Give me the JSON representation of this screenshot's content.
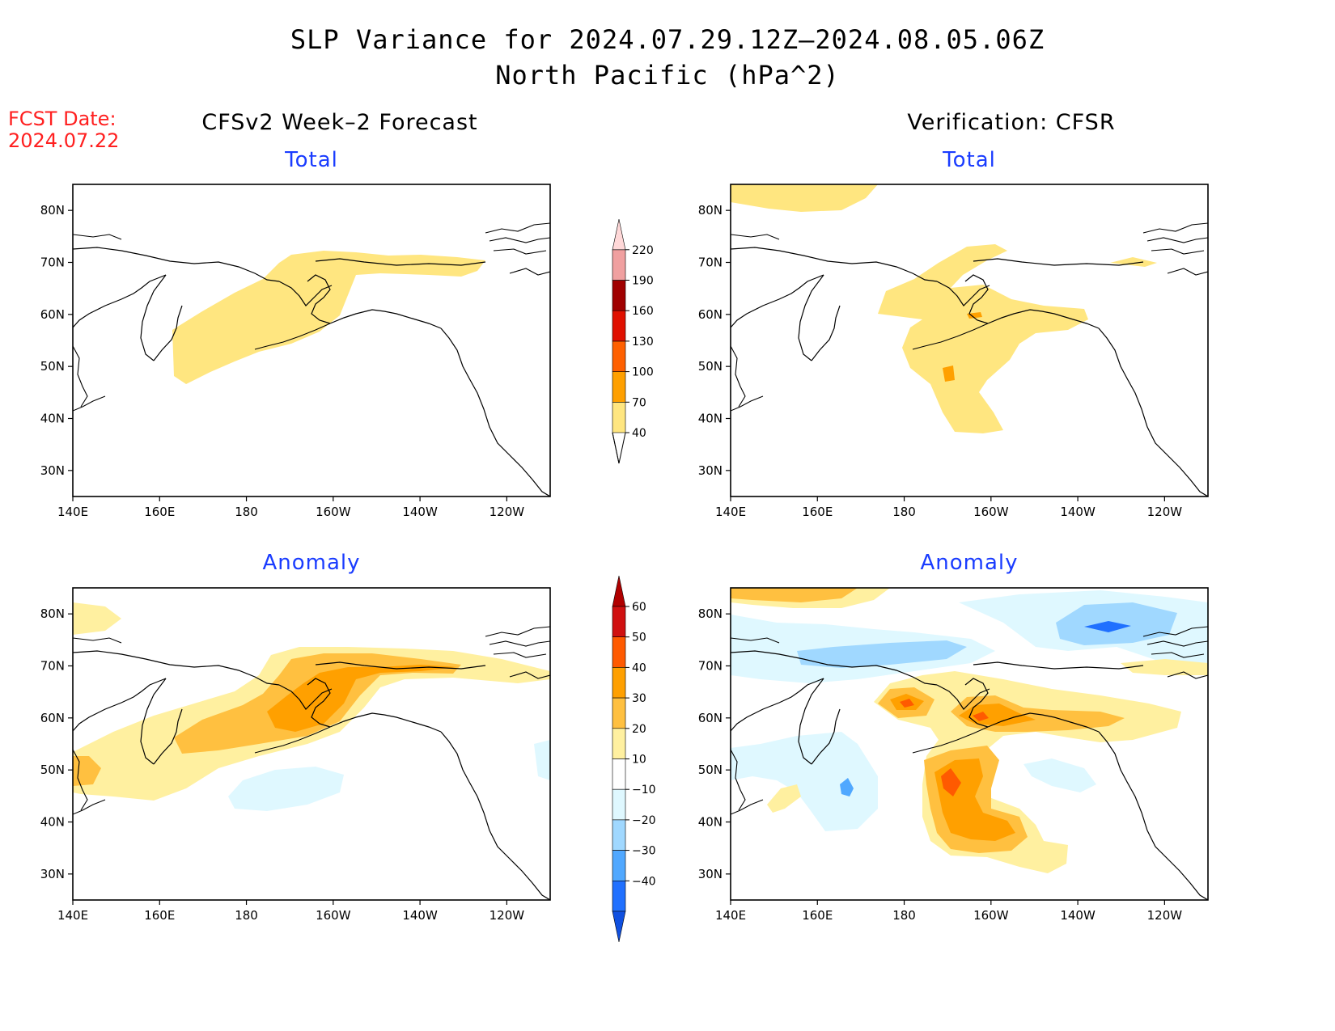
{
  "title": {
    "line1": "SLP Variance for 2024.07.29.12Z–2024.08.05.06Z",
    "line2": "North Pacific (hPa^2)"
  },
  "fcst": {
    "label": "FCST Date:",
    "date": "2024.07.22"
  },
  "columns": {
    "left": "CFSv2 Week–2 Forecast",
    "right": "Verification: CFSR"
  },
  "panels": {
    "top_left": "Total",
    "top_right": "Total",
    "bottom_left": "Anomaly",
    "bottom_right": "Anomaly"
  },
  "map_axes": {
    "lon_labels": [
      "140E",
      "160E",
      "180",
      "160W",
      "140W",
      "120W"
    ],
    "lon_values": [
      140,
      160,
      180,
      200,
      220,
      240
    ],
    "lat_labels": [
      "80N",
      "70N",
      "60N",
      "50N",
      "40N",
      "30N"
    ],
    "lat_values": [
      80,
      70,
      60,
      50,
      40,
      30
    ],
    "lon_range": [
      140,
      250
    ],
    "lat_range": [
      25,
      85
    ]
  },
  "colorbars": {
    "total": {
      "levels": [
        "40",
        "70",
        "100",
        "130",
        "160",
        "190",
        "220"
      ],
      "colors": [
        "#ffe680",
        "#ffa000",
        "#ff6000",
        "#e01000",
        "#a00000",
        "#f0a0a0",
        "#ffd8d8"
      ]
    },
    "anomaly": {
      "levels": [
        "60",
        "50",
        "40",
        "30",
        "20",
        "10",
        "−10",
        "−20",
        "−30",
        "−40"
      ],
      "colors": [
        "#d01010",
        "#ff5a00",
        "#ffa000",
        "#ffc040",
        "#fff0a0",
        "#ffffff",
        "#dff8ff",
        "#a0d8ff",
        "#50a8ff",
        "#2070ff",
        "#1048d0"
      ],
      "top_arrow_color": "#b00000",
      "bottom_arrow_color": "#1050e0"
    }
  },
  "colors": {
    "title_blue": "#1a3cff",
    "fcst_red": "#ff2020"
  }
}
